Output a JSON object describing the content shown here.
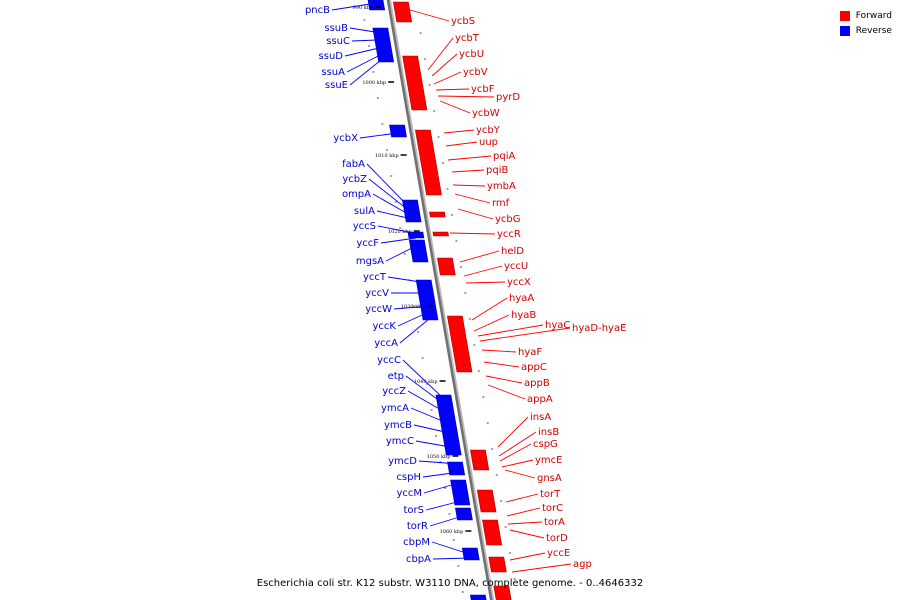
{
  "caption": "Escherichia coli str. K12 substr. W3110 DNA, complete genome. - 0..4646332",
  "legend": [
    {
      "label": "Forward",
      "color": "#ff0000"
    },
    {
      "label": "Reverse",
      "color": "#0000ff"
    }
  ],
  "ticks": [
    "990 kbp",
    "1000 kbp",
    "1010 kbp",
    "1020 kbp",
    "1030 kbp",
    "1040 kbp",
    "1050 kbp",
    "1060 kbp"
  ],
  "reverse_genes": [
    "pncB",
    "ssuB",
    "ssuC",
    "ssuD",
    "ssuA",
    "ssuE",
    "ycbX",
    "fabA",
    "ycbZ",
    "ompA",
    "sulA",
    "yccS",
    "yccF",
    "mgsA",
    "yccT",
    "yccV",
    "yccW",
    "yccK",
    "yccA",
    "yccC",
    "etp",
    "yccZ",
    "ymcA",
    "ymcB",
    "ymcC",
    "ymcD",
    "cspH",
    "yccM",
    "torS",
    "torR",
    "cbpM",
    "cbpA"
  ],
  "forward_genes": [
    "ycbS",
    "ycbT",
    "ycbU",
    "ycbV",
    "ycbF",
    "pyrD",
    "ycbW",
    "ycbY",
    "uup",
    "pqiA",
    "pqiB",
    "ymbA",
    "rmf",
    "ycbG",
    "yccR",
    "helD",
    "yccU",
    "yccX",
    "hyaA",
    "hyaB",
    "hyaC",
    "hyaD-hyaE",
    "hyaF",
    "appC",
    "appB",
    "appA",
    "insA",
    "insB",
    "cspG",
    "ymcE",
    "gnsA",
    "torT",
    "torC",
    "torA",
    "torD",
    "yccE",
    "agp"
  ]
}
